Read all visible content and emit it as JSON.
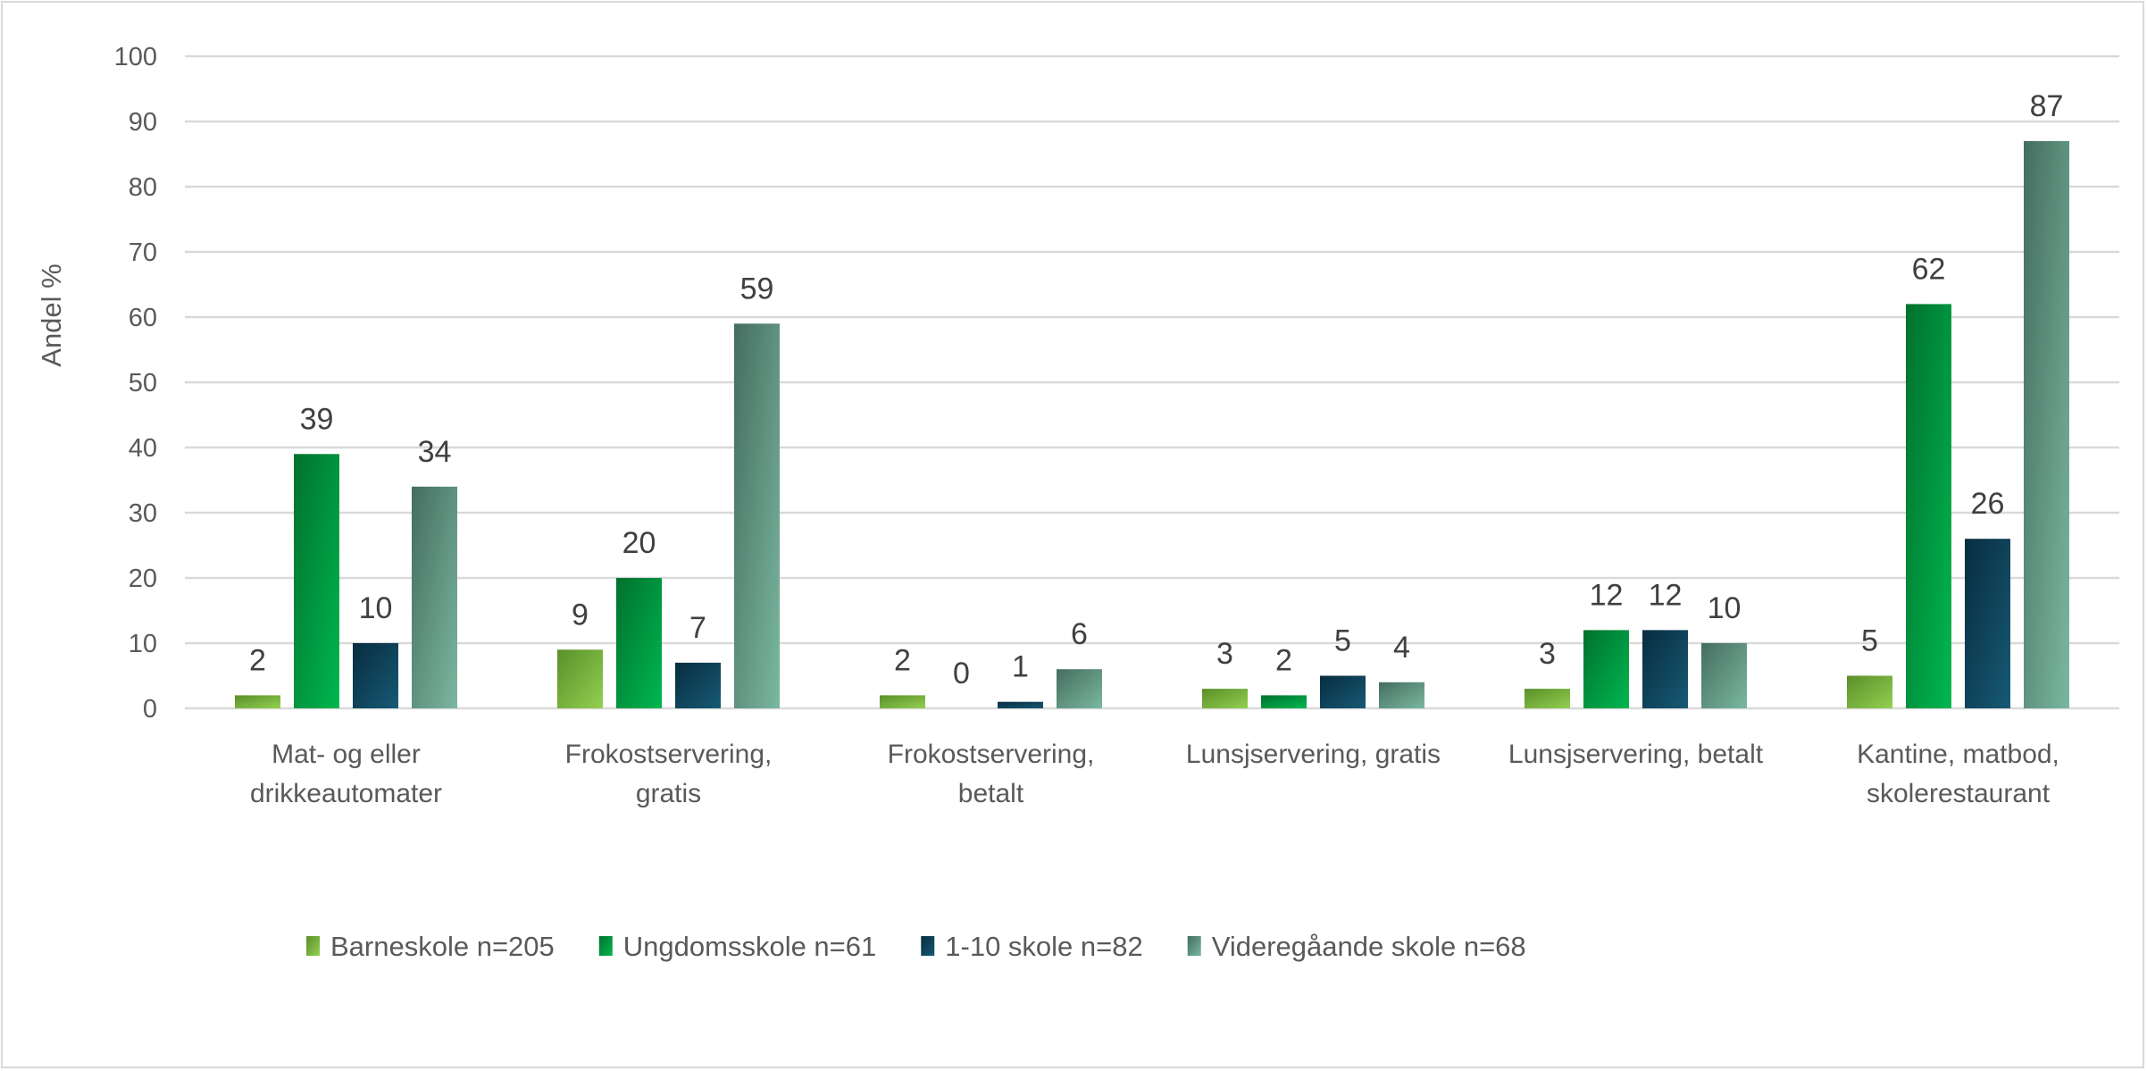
{
  "chart_data": {
    "type": "bar",
    "title": "",
    "xlabel": "",
    "ylabel": "Andel %",
    "ylim": [
      0,
      100
    ],
    "yticks": [
      0,
      10,
      20,
      30,
      40,
      50,
      60,
      70,
      80,
      90,
      100
    ],
    "grid": true,
    "legend_position": "bottom",
    "categories": [
      [
        "Mat- og eller",
        "drikkeautomater"
      ],
      [
        "Frokostservering,",
        "gratis"
      ],
      [
        "Frokostservering,",
        "betalt"
      ],
      [
        "Lunsjservering, gratis"
      ],
      [
        "Lunsjservering, betalt"
      ],
      [
        "Kantine, matbod,",
        "skolerestaurant"
      ]
    ],
    "series": [
      {
        "name": "Barneskole n=205",
        "values": [
          2,
          9,
          2,
          3,
          3,
          5
        ],
        "color": [
          "#5a8f29",
          "#92d050"
        ]
      },
      {
        "name": "Ungdomsskole n=61",
        "values": [
          39,
          20,
          0,
          2,
          12,
          62
        ],
        "color": [
          "#00712e",
          "#00b74f"
        ]
      },
      {
        "name": "1-10 skole n=82",
        "values": [
          10,
          7,
          1,
          5,
          12,
          26
        ],
        "color": [
          "#082c40",
          "#165a74"
        ]
      },
      {
        "name": "Videregåande skole n=68",
        "values": [
          34,
          59,
          6,
          4,
          10,
          87
        ],
        "color": [
          "#456d5f",
          "#7ab8a0"
        ]
      }
    ]
  }
}
